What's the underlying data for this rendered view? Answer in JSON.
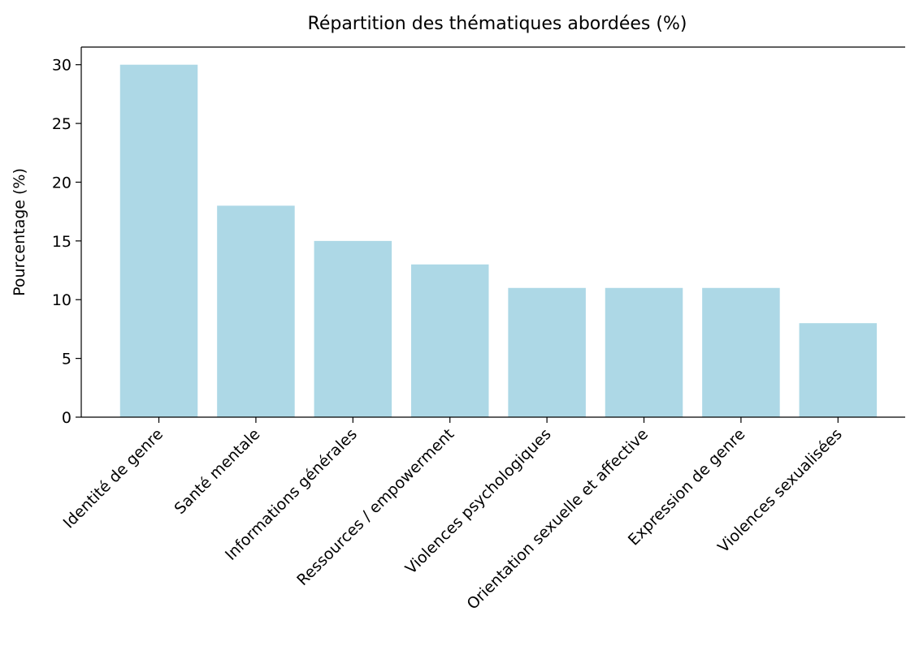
{
  "chart_data": {
    "type": "bar",
    "title": "Répartition des thématiques abordées (%)",
    "y_label": "Pourcentage (%)",
    "categories": [
      "Identité de genre",
      "Santé mentale",
      "Informations générales",
      "Ressources / empowerment",
      "Violences psychologiques",
      "Orientation sexuelle et affective",
      "Expression de genre",
      "Violences sexualisées"
    ],
    "values": [
      30,
      18,
      15,
      13,
      11,
      11,
      11,
      8
    ],
    "color": "#add8e6",
    "ylim": [
      0,
      31.5
    ],
    "yticks": [
      0,
      5,
      10,
      15,
      20,
      25,
      30
    ],
    "grid": false
  }
}
